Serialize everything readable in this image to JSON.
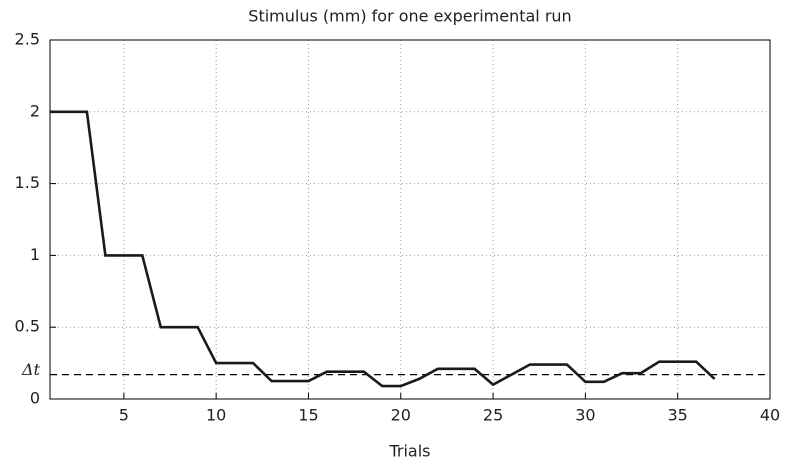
{
  "chart_data": {
    "type": "line",
    "title": "Stimulus (mm) for one experimental run",
    "x_label": "Trials",
    "x": [
      1,
      2,
      3,
      4,
      5,
      6,
      7,
      8,
      9,
      10,
      11,
      12,
      13,
      14,
      15,
      16,
      17,
      18,
      19,
      20,
      21,
      22,
      23,
      24,
      25,
      26,
      27,
      28,
      29,
      30,
      31,
      32,
      33,
      34,
      35,
      36,
      37
    ],
    "series": [
      {
        "name": "Stimulus",
        "color": "#1a1a1a",
        "values": [
          2,
          2,
          2,
          1,
          1,
          1,
          0.5,
          0.5,
          0.5,
          0.25,
          0.25,
          0.25,
          0.125,
          0.125,
          0.125,
          0.19,
          0.19,
          0.19,
          0.09,
          0.09,
          0.14,
          0.21,
          0.21,
          0.21,
          0.1,
          0.17,
          0.24,
          0.24,
          0.24,
          0.12,
          0.12,
          0.18,
          0.18,
          0.26,
          0.26,
          0.26,
          0.14
        ]
      }
    ],
    "xlim": [
      1,
      40
    ],
    "xticks": [
      5,
      10,
      15,
      20,
      25,
      30,
      35,
      40
    ],
    "ylim": [
      0,
      2.5
    ],
    "yticks": [
      0,
      0.5,
      1,
      1.5,
      2,
      2.5
    ],
    "reference_line": {
      "value": 0.17,
      "label": "Δt"
    },
    "grid": true
  }
}
